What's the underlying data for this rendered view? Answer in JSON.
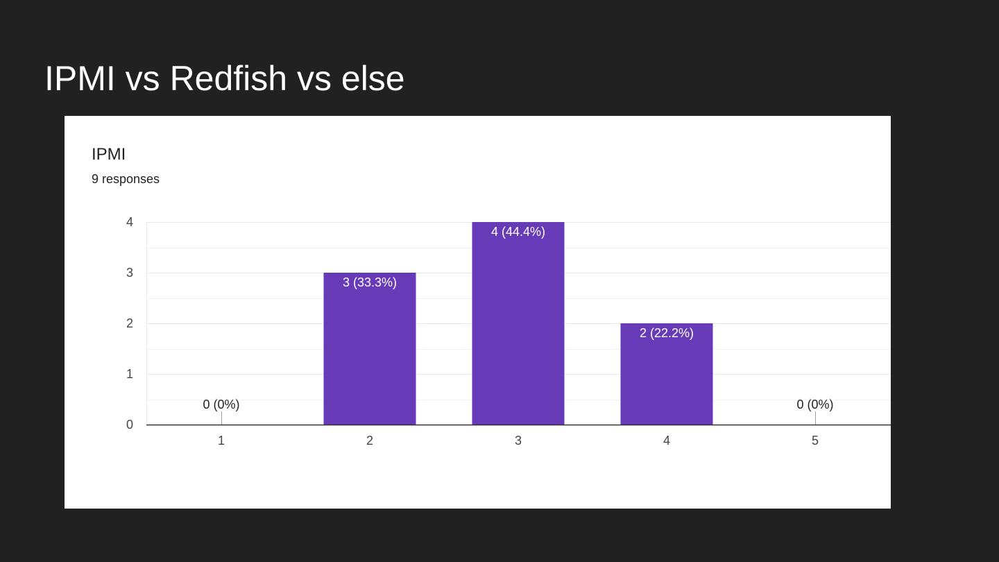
{
  "slide": {
    "title": "IPMI vs Redfish vs else"
  },
  "card": {
    "title": "IPMI",
    "subtitle": "9 responses"
  },
  "colors": {
    "background": "#212121",
    "bar": "#673ab7",
    "grid": "#e6e6e6",
    "axis": "#333333"
  },
  "chart_data": {
    "type": "bar",
    "title": "IPMI",
    "subtitle": "9 responses",
    "categories": [
      "1",
      "2",
      "3",
      "4",
      "5"
    ],
    "values": [
      0,
      3,
      4,
      2,
      0
    ],
    "data_labels": [
      "0 (0%)",
      "3 (33.3%)",
      "4 (44.4%)",
      "2 (22.2%)",
      "0 (0%)"
    ],
    "yticks": [
      "0",
      "1",
      "2",
      "3",
      "4"
    ],
    "ylim": [
      0,
      4
    ],
    "xlabel": "",
    "ylabel": "",
    "grid": true,
    "legend": "none"
  }
}
